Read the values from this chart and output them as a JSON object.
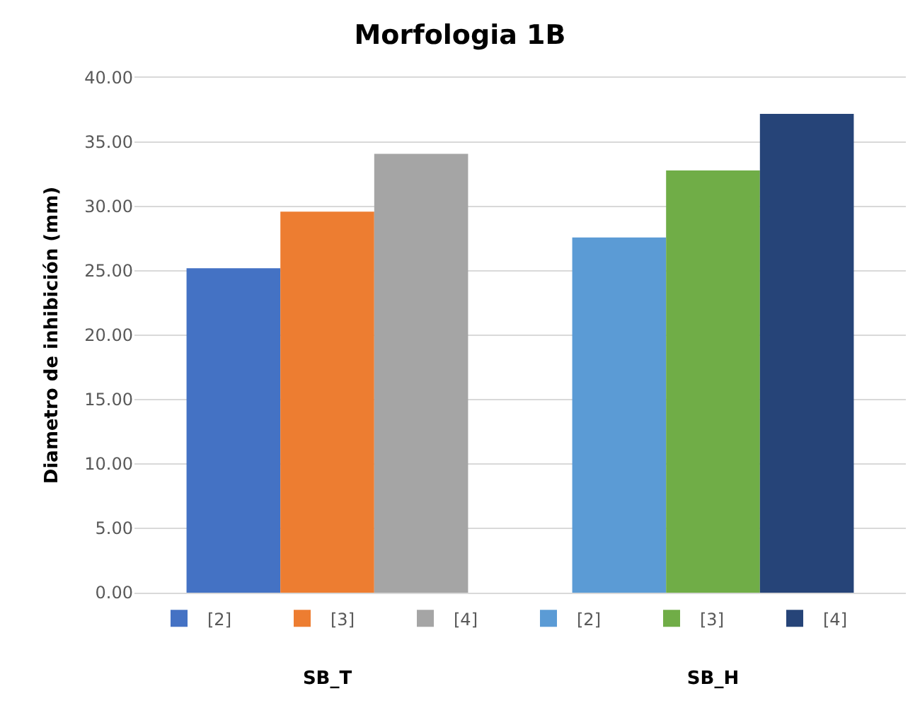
{
  "chart_data": {
    "type": "bar",
    "title": "Morfologia 1B",
    "ylabel": "Diametro de inhibición (mm)",
    "categories": [
      "SB_T",
      "SB_H"
    ],
    "series": [
      {
        "name": "[2]",
        "color": "#4472c4",
        "values": [
          25.2,
          null
        ]
      },
      {
        "name": "[3]",
        "color": "#ed7d31",
        "values": [
          29.6,
          null
        ]
      },
      {
        "name": "[4]",
        "color": "#a5a5a5",
        "values": [
          34.1,
          null
        ]
      },
      {
        "name": "[2]",
        "color": "#5b9bd5",
        "values": [
          null,
          27.6
        ]
      },
      {
        "name": "[3]",
        "color": "#70ad47",
        "values": [
          null,
          32.8
        ]
      },
      {
        "name": "[4]",
        "color": "#264478",
        "values": [
          null,
          37.2
        ]
      }
    ],
    "ylim": [
      0,
      40
    ],
    "yticks": [
      {
        "value": 0,
        "label": "0.00"
      },
      {
        "value": 5,
        "label": "5.00"
      },
      {
        "value": 10,
        "label": "10.00"
      },
      {
        "value": 15,
        "label": "15.00"
      },
      {
        "value": 20,
        "label": "20.00"
      },
      {
        "value": 25,
        "label": "25.00"
      },
      {
        "value": 30,
        "label": "30.00"
      },
      {
        "value": 35,
        "label": "35.00"
      },
      {
        "value": 40,
        "label": "40.00"
      }
    ],
    "grid": "y",
    "legend": "bottom"
  }
}
